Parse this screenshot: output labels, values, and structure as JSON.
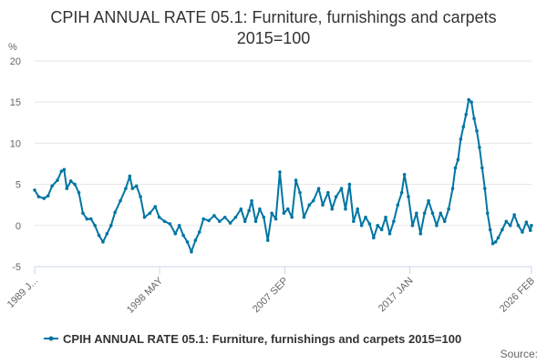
{
  "chart_data": {
    "type": "line",
    "title": "CPIH ANNUAL RATE 05.1: Furniture, furnishings and carpets 2015=100",
    "title_lines": [
      "CPIH ANNUAL RATE 05.1: Furniture, furnishings and carpets",
      "2015=100"
    ],
    "ylabel": "%",
    "xlabel": "",
    "ylim": [
      -5,
      20
    ],
    "yticks": [
      -5,
      0,
      5,
      10,
      15,
      20
    ],
    "x_range": [
      1989.0,
      2026.0833
    ],
    "xticks": [
      {
        "x": 1989.0,
        "label": "1989 J..."
      },
      {
        "x": 1998.33,
        "label": "1998 MAY"
      },
      {
        "x": 2007.67,
        "label": "2007 SEP"
      },
      {
        "x": 2017.0,
        "label": "2017 JAN"
      },
      {
        "x": 2026.08,
        "label": "2026 FEB"
      }
    ],
    "grid": true,
    "legend_position": "bottom",
    "source": "Source:",
    "series": [
      {
        "name": "CPIH ANNUAL RATE 05.1: Furniture, furnishings and carpets 2015=100",
        "color": "#0075a3",
        "points": [
          [
            1989.0,
            4.3
          ],
          [
            1989.3,
            3.5
          ],
          [
            1989.7,
            3.3
          ],
          [
            1990.0,
            3.6
          ],
          [
            1990.3,
            4.8
          ],
          [
            1990.7,
            5.5
          ],
          [
            1991.0,
            6.6
          ],
          [
            1991.2,
            6.8
          ],
          [
            1991.4,
            4.5
          ],
          [
            1991.7,
            5.4
          ],
          [
            1992.0,
            5.0
          ],
          [
            1992.3,
            4.0
          ],
          [
            1992.6,
            1.5
          ],
          [
            1992.9,
            0.8
          ],
          [
            1993.2,
            0.8
          ],
          [
            1993.5,
            0.0
          ],
          [
            1993.8,
            -1.2
          ],
          [
            1994.1,
            -2.0
          ],
          [
            1994.4,
            -1.0
          ],
          [
            1994.7,
            0.0
          ],
          [
            1995.0,
            1.6
          ],
          [
            1995.4,
            3.0
          ],
          [
            1995.8,
            4.5
          ],
          [
            1996.1,
            6.0
          ],
          [
            1996.3,
            4.5
          ],
          [
            1996.6,
            4.8
          ],
          [
            1996.9,
            3.5
          ],
          [
            1997.2,
            1.0
          ],
          [
            1997.6,
            1.5
          ],
          [
            1998.0,
            2.3
          ],
          [
            1998.3,
            1.0
          ],
          [
            1998.7,
            0.5
          ],
          [
            1999.1,
            0.2
          ],
          [
            1999.5,
            -1.0
          ],
          [
            1999.8,
            0.0
          ],
          [
            2000.1,
            -1.2
          ],
          [
            2000.4,
            -2.0
          ],
          [
            2000.7,
            -3.2
          ],
          [
            2001.0,
            -1.8
          ],
          [
            2001.3,
            -0.8
          ],
          [
            2001.6,
            0.8
          ],
          [
            2002.0,
            0.6
          ],
          [
            2002.4,
            1.2
          ],
          [
            2002.8,
            0.5
          ],
          [
            2003.2,
            1.0
          ],
          [
            2003.6,
            0.3
          ],
          [
            2004.0,
            1.0
          ],
          [
            2004.4,
            2.0
          ],
          [
            2004.7,
            0.5
          ],
          [
            2005.0,
            1.8
          ],
          [
            2005.2,
            3.0
          ],
          [
            2005.5,
            0.5
          ],
          [
            2005.8,
            2.0
          ],
          [
            2006.1,
            1.0
          ],
          [
            2006.4,
            -1.8
          ],
          [
            2006.7,
            1.5
          ],
          [
            2007.0,
            0.8
          ],
          [
            2007.3,
            6.5
          ],
          [
            2007.6,
            1.5
          ],
          [
            2007.9,
            2.0
          ],
          [
            2008.2,
            1.0
          ],
          [
            2008.5,
            5.5
          ],
          [
            2008.8,
            4.0
          ],
          [
            2009.1,
            1.0
          ],
          [
            2009.5,
            2.5
          ],
          [
            2009.8,
            3.0
          ],
          [
            2010.2,
            4.5
          ],
          [
            2010.5,
            2.5
          ],
          [
            2010.9,
            4.0
          ],
          [
            2011.2,
            2.0
          ],
          [
            2011.5,
            3.5
          ],
          [
            2011.9,
            4.5
          ],
          [
            2012.2,
            2.0
          ],
          [
            2012.5,
            5.0
          ],
          [
            2012.8,
            0.5
          ],
          [
            2013.1,
            2.0
          ],
          [
            2013.4,
            0.0
          ],
          [
            2013.7,
            1.0
          ],
          [
            2014.0,
            0.2
          ],
          [
            2014.3,
            -1.5
          ],
          [
            2014.6,
            0.0
          ],
          [
            2014.9,
            -0.5
          ],
          [
            2015.2,
            1.0
          ],
          [
            2015.5,
            -1.0
          ],
          [
            2015.8,
            0.5
          ],
          [
            2016.1,
            2.5
          ],
          [
            2016.4,
            4.0
          ],
          [
            2016.6,
            6.2
          ],
          [
            2016.9,
            3.5
          ],
          [
            2017.2,
            0.0
          ],
          [
            2017.5,
            1.5
          ],
          [
            2017.8,
            -1.0
          ],
          [
            2018.1,
            1.5
          ],
          [
            2018.4,
            3.0
          ],
          [
            2018.7,
            1.5
          ],
          [
            2019.0,
            0.0
          ],
          [
            2019.3,
            1.5
          ],
          [
            2019.6,
            0.5
          ],
          [
            2019.9,
            2.0
          ],
          [
            2020.2,
            4.5
          ],
          [
            2020.4,
            7.0
          ],
          [
            2020.6,
            8.0
          ],
          [
            2020.8,
            10.5
          ],
          [
            2021.0,
            12.0
          ],
          [
            2021.2,
            13.5
          ],
          [
            2021.4,
            15.3
          ],
          [
            2021.6,
            15.0
          ],
          [
            2021.8,
            13.0
          ],
          [
            2022.0,
            11.5
          ],
          [
            2022.2,
            9.5
          ],
          [
            2022.4,
            7.0
          ],
          [
            2022.6,
            4.5
          ],
          [
            2022.8,
            1.5
          ],
          [
            2023.0,
            -0.5
          ],
          [
            2023.2,
            -2.2
          ],
          [
            2023.4,
            -2.0
          ],
          [
            2023.6,
            -1.5
          ],
          [
            2023.9,
            -0.5
          ],
          [
            2024.2,
            0.5
          ],
          [
            2024.5,
            0.0
          ],
          [
            2024.8,
            1.3
          ],
          [
            2025.1,
            0.0
          ],
          [
            2025.4,
            -0.8
          ],
          [
            2025.7,
            0.4
          ],
          [
            2026.0,
            -0.6
          ],
          [
            2026.08,
            0.0
          ]
        ]
      }
    ]
  }
}
